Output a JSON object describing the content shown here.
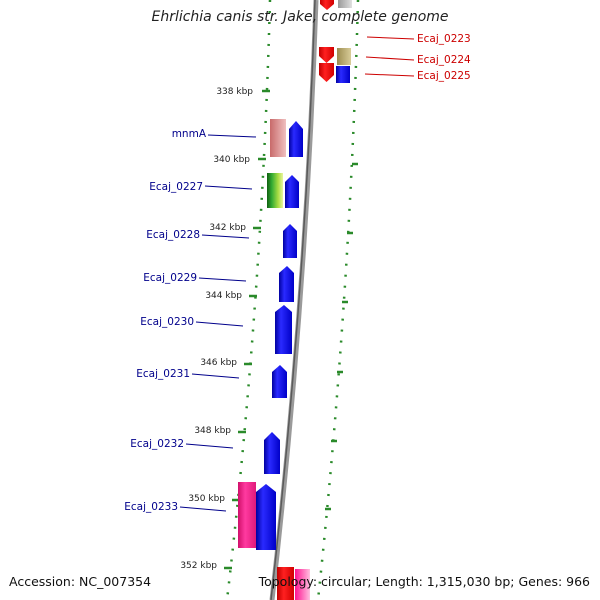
{
  "title": "Ehrlichia canis str. Jake, complete genome",
  "footer": {
    "accession": "Accession: NC_007354",
    "summary": "Topology: circular; Length: 1,315,030 bp; Genes: 966"
  },
  "colors": {
    "forward_cds": "#0000ff",
    "reverse_cds": "#ff0000",
    "trna": "#c89696",
    "rrna_like": "#33aa33",
    "pink_cds": "#ff1493",
    "tan_cds": "#b7a96a",
    "tick": "#2a8a2a",
    "left_label": "#00008b",
    "right_label": "#cc0000",
    "backbone": "#808080"
  },
  "kbp_ticks": [
    "338 kbp",
    "340 kbp",
    "342 kbp",
    "344 kbp",
    "346 kbp",
    "348 kbp",
    "350 kbp",
    "352 kbp"
  ],
  "left_labels": [
    "mnmA",
    "Ecaj_0227",
    "Ecaj_0228",
    "Ecaj_0229",
    "Ecaj_0230",
    "Ecaj_0231",
    "Ecaj_0232",
    "Ecaj_0233"
  ],
  "right_labels": [
    "Ecaj_0223",
    "Ecaj_0224",
    "Ecaj_0225"
  ]
}
